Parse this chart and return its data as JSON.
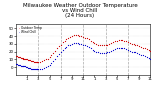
{
  "title": "Milwaukee Weather Outdoor Temperature\nvs Wind Chill\n(24 Hours)",
  "title_fontsize": 4.0,
  "background_color": "#ffffff",
  "legend_outdoor": "Outdoor Temp",
  "legend_windchill": "Wind Chill",
  "outdoor_color": "#cc0000",
  "windchill_color": "#0000cc",
  "grid_color": "#aaaaaa",
  "ylim": [
    -10,
    55
  ],
  "xlim": [
    0,
    288
  ],
  "yticks": [
    0,
    10,
    20,
    30,
    40,
    50
  ],
  "outdoor_x": [
    0,
    2,
    4,
    6,
    8,
    10,
    12,
    14,
    16,
    18,
    20,
    22,
    24,
    26,
    28,
    30,
    32,
    34,
    36,
    38,
    40,
    42,
    44,
    46,
    48,
    52,
    56,
    60,
    64,
    68,
    72,
    76,
    80,
    84,
    88,
    92,
    96,
    100,
    104,
    108,
    112,
    116,
    120,
    124,
    128,
    132,
    136,
    140,
    144,
    148,
    152,
    156,
    160,
    164,
    168,
    172,
    176,
    180,
    184,
    188,
    192,
    196,
    200,
    204,
    208,
    212,
    216,
    220,
    224,
    228,
    232,
    236,
    240,
    244,
    248,
    252,
    256,
    260,
    264,
    268,
    272,
    276,
    280,
    284,
    288
  ],
  "outdoor_y": [
    14,
    14,
    13,
    13,
    13,
    12,
    12,
    12,
    11,
    11,
    11,
    10,
    10,
    9,
    9,
    9,
    8,
    8,
    8,
    7,
    7,
    7,
    7,
    7,
    7,
    7,
    8,
    9,
    10,
    11,
    13,
    15,
    18,
    21,
    24,
    27,
    29,
    32,
    34,
    36,
    38,
    39,
    40,
    41,
    41,
    41,
    40,
    40,
    39,
    38,
    37,
    36,
    34,
    32,
    31,
    30,
    29,
    28,
    28,
    28,
    28,
    29,
    30,
    31,
    32,
    33,
    34,
    35,
    35,
    35,
    34,
    33,
    32,
    31,
    30,
    30,
    29,
    28,
    27,
    26,
    25,
    24,
    23,
    22,
    21
  ],
  "windchill_x": [
    0,
    2,
    4,
    6,
    8,
    10,
    12,
    14,
    16,
    18,
    20,
    22,
    24,
    26,
    28,
    30,
    32,
    34,
    36,
    38,
    40,
    42,
    44,
    46,
    48,
    52,
    56,
    60,
    64,
    68,
    72,
    76,
    80,
    84,
    88,
    92,
    96,
    100,
    104,
    108,
    112,
    116,
    120,
    124,
    128,
    132,
    136,
    140,
    144,
    148,
    152,
    156,
    160,
    164,
    168,
    172,
    176,
    180,
    184,
    188,
    192,
    196,
    200,
    204,
    208,
    212,
    216,
    220,
    224,
    228,
    232,
    236,
    240,
    244,
    248,
    252,
    256,
    260,
    264,
    268,
    272,
    276,
    280,
    284,
    288
  ],
  "windchill_y": [
    4,
    4,
    3,
    3,
    3,
    2,
    2,
    2,
    1,
    1,
    1,
    0,
    0,
    -1,
    -1,
    -1,
    -2,
    -2,
    -2,
    -3,
    -3,
    -3,
    -3,
    -3,
    -3,
    -3,
    -2,
    -1,
    0,
    1,
    3,
    5,
    8,
    11,
    14,
    17,
    19,
    22,
    24,
    26,
    28,
    29,
    30,
    31,
    31,
    31,
    30,
    30,
    29,
    28,
    27,
    26,
    24,
    22,
    21,
    20,
    19,
    18,
    18,
    18,
    18,
    19,
    20,
    21,
    22,
    23,
    24,
    25,
    25,
    25,
    24,
    23,
    22,
    21,
    20,
    20,
    19,
    18,
    17,
    16,
    15,
    14,
    13,
    12,
    11
  ],
  "vgrid_x": [
    48,
    96,
    144,
    192,
    240
  ],
  "marker_size": 0.8,
  "xtick_positions": [
    24,
    48,
    72,
    96,
    120,
    144,
    168,
    192,
    216,
    240,
    264,
    288
  ],
  "xtick_labels": [
    "1",
    "3",
    "5",
    "7",
    "9",
    "11",
    "1",
    "3",
    "5",
    "7",
    "9",
    "11"
  ]
}
